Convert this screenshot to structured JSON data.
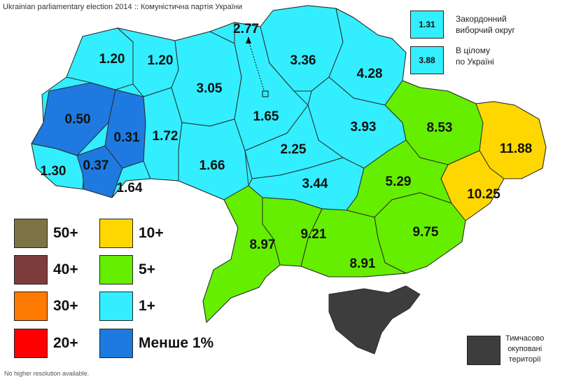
{
  "title": "Ukrainian parliamentary election 2014 :: Комуністична партія України",
  "footnote": "No higher resolution available.",
  "colors": {
    "50+": "#7d7445",
    "40+": "#7d3d3d",
    "30+": "#ff7a00",
    "20+": "#ff0000",
    "10+": "#ffd700",
    "5+": "#66ee00",
    "1+": "#33eeff",
    "less1": "#1e7ae0",
    "occupied": "#3d3d3d",
    "info": "#33eeff"
  },
  "regions": {
    "zakarpattia": "1.30",
    "lviv": "0.50",
    "ivano_frankivsk": "0.37",
    "ternopil": "0.31",
    "chernivtsi": "1.64",
    "volyn": "1.20",
    "rivne": "1.20",
    "khmelnytskyi": "1.72",
    "zhytomyr": "3.05",
    "vinnytsia": "1.66",
    "kyiv_city": "2.77",
    "kyiv_oblast": "1.65",
    "chernihiv": "3.36",
    "sumy": "4.28",
    "poltava": "3.93",
    "cherkasy": "2.25",
    "kirovohrad": "3.44",
    "kharkiv": "8.53",
    "luhansk": "11.88",
    "donetsk": "10.25",
    "dnipropetrovsk": "5.29",
    "zaporizhzhia": "9.75",
    "kherson": "8.91",
    "mykolaiv": "9.21",
    "odesa": "8.97"
  },
  "legend": {
    "items": [
      {
        "key": "50+",
        "label": "50+"
      },
      {
        "key": "40+",
        "label": "40+"
      },
      {
        "key": "30+",
        "label": "30+"
      },
      {
        "key": "20+",
        "label": "20+"
      },
      {
        "key": "10+",
        "label": "10+"
      },
      {
        "key": "5+",
        "label": "5+"
      },
      {
        "key": "1+",
        "label": "1+"
      },
      {
        "key": "less1",
        "label": "Менше 1%"
      }
    ]
  },
  "info": {
    "abroad_value": "1.31",
    "abroad_label_line1": "Закордонний",
    "abroad_label_line2": "виборчий округ",
    "total_value": "3.88",
    "total_label_line1": "В цілому",
    "total_label_line2": "по Україні"
  },
  "occupied": {
    "line1": "Тимчасово",
    "line2": "окуповані",
    "line3": "території"
  }
}
